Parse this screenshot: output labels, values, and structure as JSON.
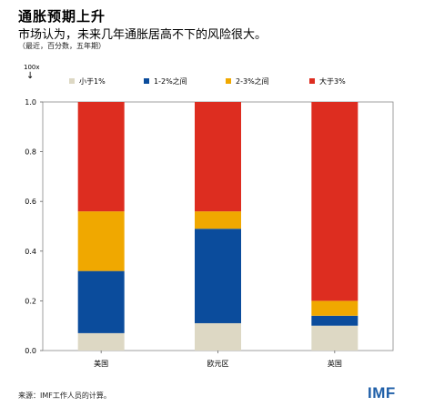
{
  "header": {
    "title": "通胀预期上升",
    "subtitle": "市场认为，未来几年通胀居高不下的风险很大。",
    "note": "（最近，百分数，五年期）",
    "unit": "100x"
  },
  "footer": {
    "source": "来源：IMF工作人员的计算。",
    "logo": "IMF"
  },
  "colors": {
    "below1": "#ddd8c4",
    "one_to_two": "#0b4c9c",
    "two_to_three": "#f0a800",
    "above3": "#dd2d20"
  },
  "chart_data": {
    "type": "bar",
    "stacked": true,
    "categories": [
      "美国",
      "欧元区",
      "英国"
    ],
    "series": [
      {
        "name": "小于1%",
        "values": [
          0.07,
          0.11,
          0.1
        ],
        "color": "#ddd8c4"
      },
      {
        "name": "1-2%之间",
        "values": [
          0.25,
          0.38,
          0.04
        ],
        "color": "#0b4c9c"
      },
      {
        "name": "2-3%之间",
        "values": [
          0.24,
          0.07,
          0.06
        ],
        "color": "#f0a800"
      },
      {
        "name": "大于3%",
        "values": [
          0.44,
          0.44,
          0.8
        ],
        "color": "#dd2d20"
      }
    ],
    "ylim": [
      0,
      1.0
    ],
    "yticks": [
      0.0,
      0.2,
      0.4,
      0.6,
      0.8,
      1.0
    ],
    "ytick_labels": [
      "0.0",
      "0.2",
      "0.4",
      "0.6",
      "0.8",
      "1.0"
    ],
    "legend_position": "top",
    "grid": false
  }
}
